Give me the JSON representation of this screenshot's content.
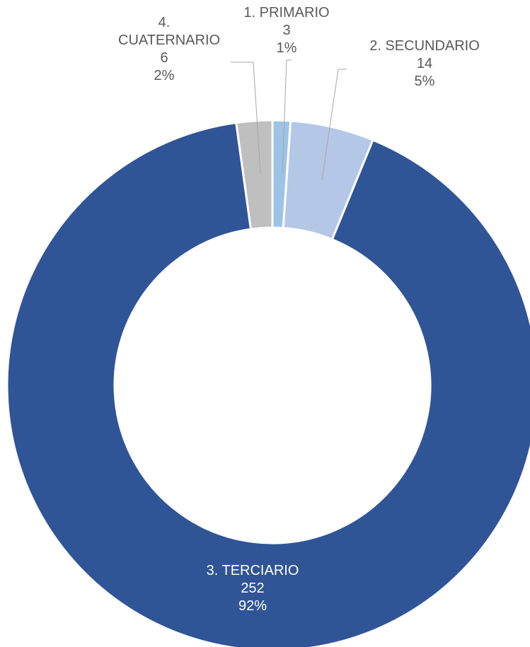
{
  "chart_data": {
    "type": "donut",
    "categories": [
      "1. PRIMARIO",
      "2. SECUNDARIO",
      "3. TERCIARIO",
      "4. CUATERNARIO"
    ],
    "values": [
      3,
      14,
      252,
      6
    ],
    "percent_labels": [
      "1%",
      "5%",
      "92%",
      "2%"
    ],
    "colors": [
      "#9dc3e6",
      "#b4c7e7",
      "#2f5597",
      "#bfbfbf"
    ]
  }
}
